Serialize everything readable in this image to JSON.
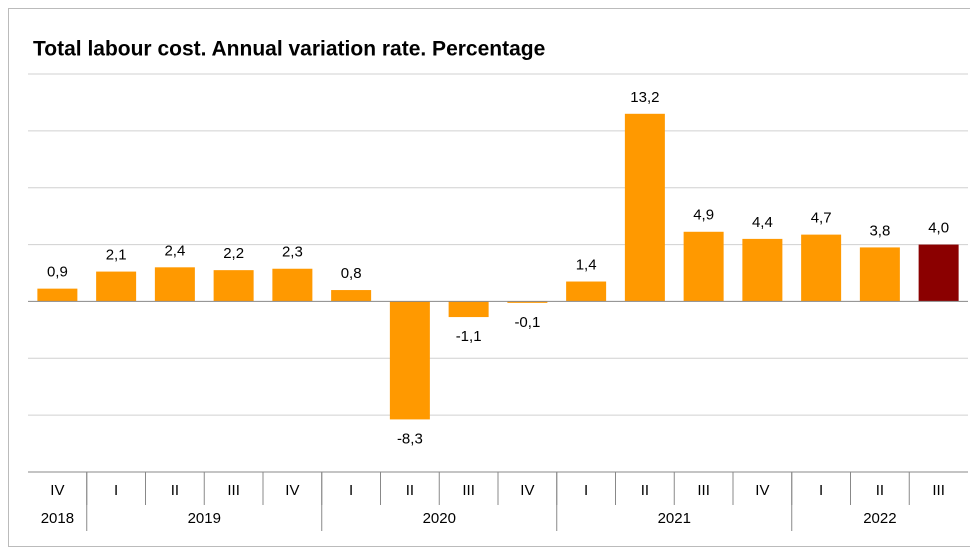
{
  "chart_data": {
    "type": "bar",
    "title": "Total labour cost. Annual  variation rate. Percentage",
    "categories": [
      "IV",
      "I",
      "II",
      "III",
      "IV",
      "I",
      "II",
      "III",
      "IV",
      "I",
      "II",
      "III",
      "IV",
      "I",
      "II",
      "III"
    ],
    "year_groups": [
      {
        "label": "2018",
        "count": 1
      },
      {
        "label": "2019",
        "count": 4
      },
      {
        "label": "2020",
        "count": 4
      },
      {
        "label": "2021",
        "count": 4
      },
      {
        "label": "2022",
        "count": 3
      }
    ],
    "values": [
      0.9,
      2.1,
      2.4,
      2.2,
      2.3,
      0.8,
      -8.3,
      -1.1,
      -0.1,
      1.4,
      13.2,
      4.9,
      4.4,
      4.7,
      3.8,
      4.0
    ],
    "value_labels": [
      "0,9",
      "2,1",
      "2,4",
      "2,2",
      "2,3",
      "0,8",
      "-8,3",
      "-1,1",
      "-0,1",
      "1,4",
      "13,2",
      "4,9",
      "4,4",
      "4,7",
      "3,8",
      "4,0"
    ],
    "colors": [
      "#ff9900",
      "#ff9900",
      "#ff9900",
      "#ff9900",
      "#ff9900",
      "#ff9900",
      "#ff9900",
      "#ff9900",
      "#ff9900",
      "#ff9900",
      "#ff9900",
      "#ff9900",
      "#ff9900",
      "#ff9900",
      "#ff9900",
      "#8b0000"
    ],
    "ylim": [
      -12,
      16
    ],
    "yticks": [
      -12,
      -8,
      -4,
      0,
      4,
      8,
      12,
      16
    ],
    "grid": true
  }
}
